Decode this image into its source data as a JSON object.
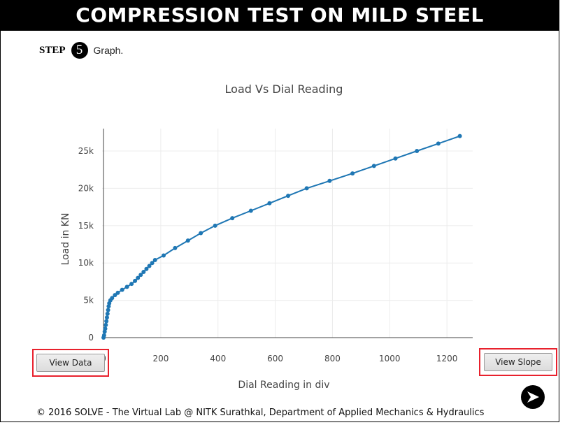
{
  "header": {
    "title": "COMPRESSION TEST ON MILD STEEL"
  },
  "step": {
    "label": "STEP",
    "number": "5",
    "text": "Graph."
  },
  "buttons": {
    "view_data": "View Data",
    "view_slope": "View Slope"
  },
  "footer": {
    "text": "© 2016 SOLVE - The Virtual Lab @ NITK Surathkal, Department of Applied Mechanics & Hydraulics"
  },
  "icons": {
    "next": "next-arrow-icon"
  },
  "colors": {
    "line": "#1f77b4",
    "header_bg": "#000000",
    "highlight": "#e8212d"
  },
  "chart_data": {
    "type": "line",
    "title": "Load Vs Dial Reading",
    "xlabel": "Dial Reading in div",
    "ylabel": "Load in KN",
    "xlim": [
      -5,
      1290
    ],
    "ylim": [
      0,
      28000
    ],
    "xticks": [
      0,
      200,
      400,
      600,
      800,
      1000,
      1200
    ],
    "xtick_labels": [
      "0",
      "200",
      "400",
      "600",
      "800",
      "1000",
      "1200"
    ],
    "yticks": [
      0,
      5000,
      10000,
      15000,
      20000,
      25000
    ],
    "ytick_labels": [
      "0",
      "5k",
      "10k",
      "15k",
      "20k",
      "25k"
    ],
    "grid": true,
    "legend": "none",
    "series": [
      {
        "x": [
          0,
          2,
          4,
          6,
          8,
          10,
          12,
          14,
          16,
          18,
          20,
          24,
          30,
          40,
          50,
          65,
          82,
          98,
          110,
          120,
          130,
          140,
          150,
          160,
          170,
          180,
          210,
          250,
          295,
          340,
          390,
          450,
          515,
          580,
          645,
          710,
          790,
          870,
          945,
          1020,
          1095,
          1170,
          1245
        ],
        "y": [
          0,
          300,
          800,
          1200,
          1700,
          2200,
          2700,
          3200,
          3700,
          4200,
          4600,
          5000,
          5300,
          5700,
          6000,
          6400,
          6800,
          7200,
          7600,
          8000,
          8400,
          8800,
          9200,
          9600,
          10000,
          10400,
          11000,
          12000,
          13000,
          14000,
          15000,
          16000,
          17000,
          18000,
          19000,
          20000,
          21000,
          22000,
          23000,
          24000,
          25000,
          26000,
          27000
        ]
      }
    ]
  }
}
